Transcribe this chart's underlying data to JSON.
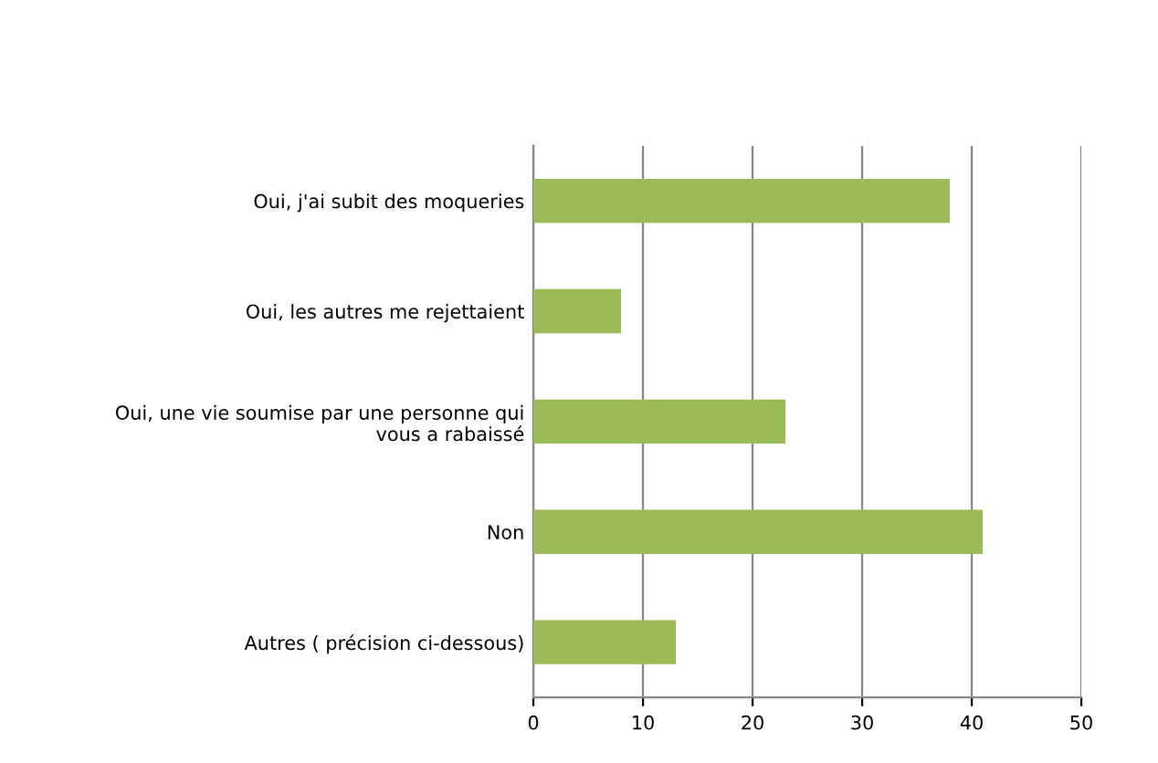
{
  "chart_data": {
    "type": "bar",
    "orientation": "horizontal",
    "categories": [
      "Oui, j'ai subit des moqueries",
      "Oui, les autres me rejettaient",
      "Oui, une vie soumise par une personne qui vous a rabaissé",
      "Non",
      "Autres ( précision ci-dessous)"
    ],
    "values": [
      38,
      8,
      23,
      41,
      13
    ],
    "color": "#9bbb59",
    "xlim": [
      0,
      50
    ],
    "xticks": [
      0,
      10,
      20,
      30,
      40,
      50
    ],
    "grid": "x"
  }
}
